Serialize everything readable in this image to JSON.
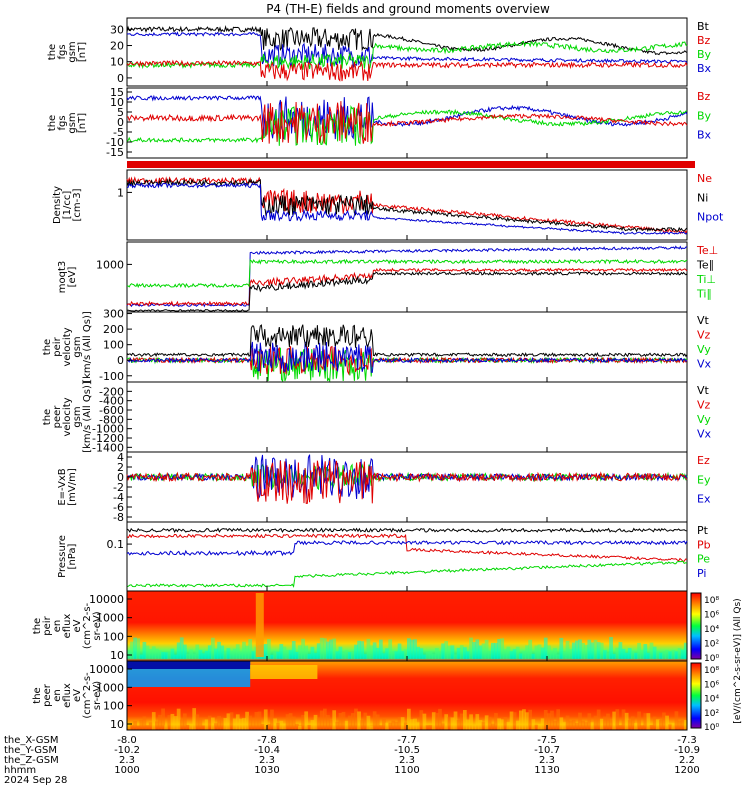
{
  "title": "P4 (TH-E) fields and ground moments overview",
  "colors": {
    "black": "#000000",
    "red": "#e00000",
    "green": "#00d800",
    "blue": "#0000d0",
    "spectrogram_high": "#ff1a00",
    "spectrogram_mid": "#ffa000"
  },
  "chart_data": {
    "type": "line",
    "x_range": [
      "1000",
      "1200"
    ],
    "panels": [
      {
        "id": "fgs",
        "ylabel": [
          "the",
          "fgs",
          "gsm",
          "[nT]"
        ],
        "yticks": [
          "30",
          "20",
          "10",
          "0"
        ],
        "ylim": [
          -5,
          37
        ],
        "legend": [
          {
            "text": "Bt",
            "color": "black"
          },
          {
            "text": "Bz",
            "color": "red"
          },
          {
            "text": "By",
            "color": "green"
          },
          {
            "text": "Bx",
            "color": "blue"
          }
        ]
      },
      {
        "id": "fgs2",
        "ylabel": [
          "the",
          "fgs",
          "gsm",
          "[nT]"
        ],
        "yticks": [
          "15",
          "10",
          "5",
          "0",
          "-5",
          "-10",
          "-15"
        ],
        "ylim": [
          -18,
          17
        ],
        "legend": [
          {
            "text": "Bz",
            "color": "red"
          },
          {
            "text": "By",
            "color": "green"
          },
          {
            "text": "Bx",
            "color": "blue"
          }
        ]
      },
      {
        "id": "bar",
        "ylabel": [],
        "yticks": [],
        "legend": []
      },
      {
        "id": "density",
        "ylabel": [
          "Density",
          "[1/cc]",
          "[cm-3]"
        ],
        "yticks": [
          "1"
        ],
        "legend": [
          {
            "text": "Ne",
            "color": "red"
          },
          {
            "text": "Ni",
            "color": "black"
          },
          {
            "text": "Npot",
            "color": "blue"
          }
        ]
      },
      {
        "id": "temp",
        "ylabel": [
          "moqt3",
          "[eV]"
        ],
        "yticks": [
          "1000"
        ],
        "legend": [
          {
            "text": "Te⊥",
            "color": "red"
          },
          {
            "text": "Te∥",
            "color": "black"
          },
          {
            "text": "Ti⊥",
            "color": "green"
          },
          {
            "text": "Ti∥",
            "color": "green"
          }
        ]
      },
      {
        "id": "peir_vel",
        "ylabel": [
          "the",
          "peir",
          "velocity",
          "gsm",
          "[km/s (All Qs)]"
        ],
        "yticks": [
          "300",
          "200",
          "100",
          "0",
          "-100"
        ],
        "ylim": [
          -140,
          310
        ],
        "legend": [
          {
            "text": "Vt",
            "color": "black"
          },
          {
            "text": "Vz",
            "color": "red"
          },
          {
            "text": "Vy",
            "color": "green"
          },
          {
            "text": "Vx",
            "color": "blue"
          }
        ]
      },
      {
        "id": "peer_vel",
        "ylabel": [
          "the",
          "peer",
          "velocity",
          "gsm",
          "[km/s (All Qs)]"
        ],
        "yticks": [
          "-200",
          "-400",
          "-600",
          "-800",
          "-1000",
          "-1200",
          "-1400"
        ],
        "ylim": [
          -1500,
          0
        ],
        "legend": [
          {
            "text": "Vt",
            "color": "black"
          },
          {
            "text": "Vz",
            "color": "red"
          },
          {
            "text": "Vy",
            "color": "green"
          },
          {
            "text": "Vx",
            "color": "blue"
          }
        ]
      },
      {
        "id": "efield",
        "ylabel": [
          "E=-VxB",
          "[mV/m]"
        ],
        "yticks": [
          "4",
          "2",
          "0",
          "-2",
          "-4",
          "-6",
          "-8"
        ],
        "ylim": [
          -9,
          5
        ],
        "legend": [
          {
            "text": "Ez",
            "color": "red"
          },
          {
            "text": "Ey",
            "color": "green"
          },
          {
            "text": "Ex",
            "color": "blue"
          }
        ]
      },
      {
        "id": "pressure",
        "ylabel": [
          "Pressure",
          "[nPa]"
        ],
        "yticks": [
          "0.1"
        ],
        "legend": [
          {
            "text": "Pt",
            "color": "black"
          },
          {
            "text": "Pb",
            "color": "red"
          },
          {
            "text": "Pe",
            "color": "green"
          },
          {
            "text": "Pi",
            "color": "blue"
          }
        ]
      },
      {
        "id": "peir_eflux",
        "ylabel": [
          "the",
          "peir",
          "en",
          "eflux",
          "eV",
          "(cm^2-s-",
          "sr-eV)"
        ],
        "yticks": [
          "10000",
          "1000",
          "100",
          "10"
        ],
        "legend": []
      },
      {
        "id": "peer_eflux",
        "ylabel": [
          "the",
          "peer",
          "en",
          "eflux",
          "eV",
          "(cm^2-s-",
          "sr-eV)"
        ],
        "yticks": [
          "10000",
          "1000",
          "100",
          "10"
        ],
        "legend": []
      }
    ],
    "colorbar": {
      "label": "[eV/(cm^2-s-sr-eV)] (All Qs)",
      "upper_ticks": [
        "10⁸",
        "10⁶",
        "10⁴",
        "10²",
        "10⁰"
      ],
      "lower_ticks": [
        "10⁸",
        "10⁶",
        "10⁴",
        "10²",
        "10⁰"
      ]
    },
    "x_axis_rows": [
      {
        "label": "the_X-GSM",
        "values": [
          "-8.0",
          "-7.8",
          "-7.7",
          "-7.5",
          "-7.3"
        ]
      },
      {
        "label": "the_Y-GSM",
        "values": [
          "-10.2",
          "-10.4",
          "-10.5",
          "-10.7",
          "-10.9"
        ]
      },
      {
        "label": "the_Z-GSM",
        "values": [
          "2.3",
          "2.3",
          "2.3",
          "2.3",
          "2.2"
        ]
      },
      {
        "label": "hhmm",
        "values": [
          "1000",
          "1030",
          "1100",
          "1130",
          "1200"
        ]
      }
    ],
    "date_label": "2024 Sep 28"
  }
}
